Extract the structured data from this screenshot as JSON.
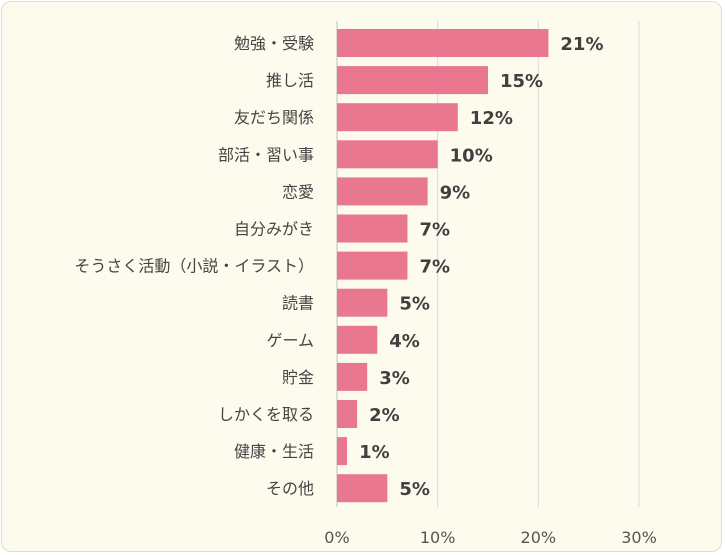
{
  "chart_data": {
    "type": "bar",
    "orientation": "horizontal",
    "categories": [
      "勉強・受験",
      "推し活",
      "友だち関係",
      "部活・習い事",
      "恋愛",
      "自分みがき",
      "そうさく活動（小説・イラスト）",
      "読書",
      "ゲーム",
      "貯金",
      "しかくを取る",
      "健康・生活",
      "その他"
    ],
    "values": [
      21,
      15,
      12,
      10,
      9,
      7,
      7,
      5,
      4,
      3,
      2,
      1,
      5
    ],
    "value_labels": [
      "21%",
      "15%",
      "12%",
      "10%",
      "9%",
      "7%",
      "7%",
      "5%",
      "4%",
      "3%",
      "2%",
      "1%",
      "5%"
    ],
    "xlim": [
      0,
      30
    ],
    "xticks": [
      0,
      10,
      20,
      30
    ],
    "xtick_labels": [
      "0%",
      "10%",
      "20%",
      "30%"
    ],
    "title": "",
    "xlabel": "",
    "ylabel": "",
    "grid": true,
    "legend": "none",
    "bar_color": "#e8778f",
    "background_color": "#fdfbee"
  }
}
